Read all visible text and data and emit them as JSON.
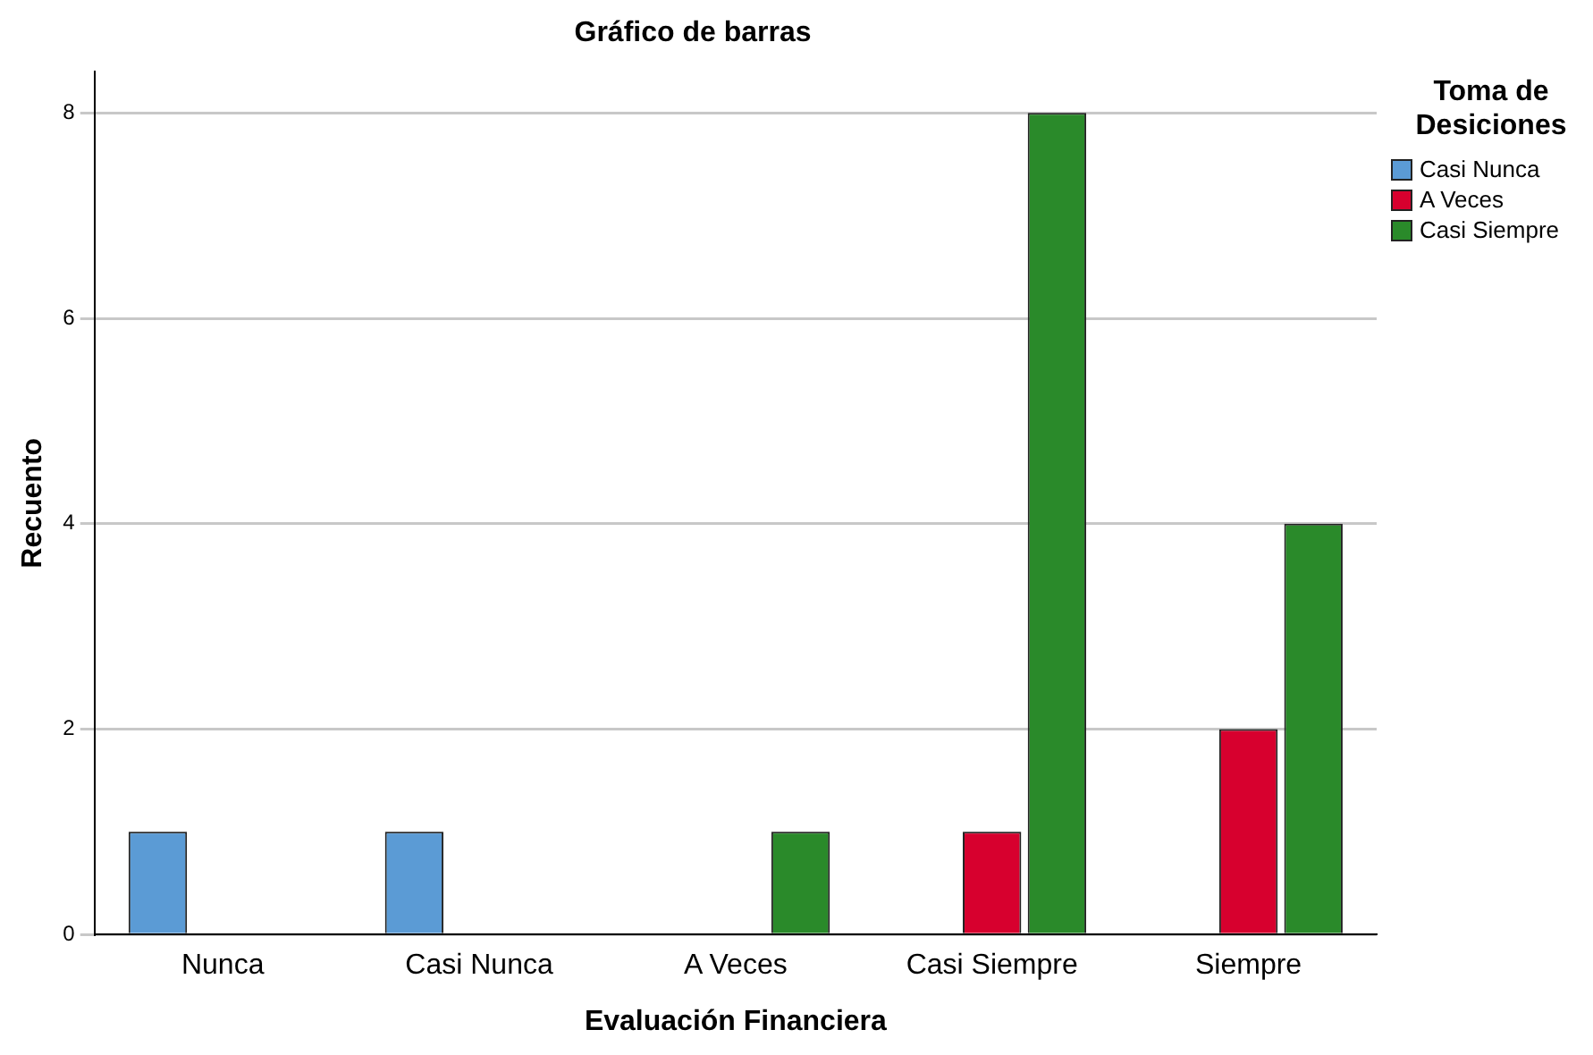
{
  "chart_data": {
    "type": "bar",
    "title": "Gráfico de barras",
    "xlabel": "Evaluación Financiera",
    "ylabel": "Recuento",
    "legend_title": "Toma de Desiciones",
    "categories": [
      "Nunca",
      "Casi Nunca",
      "A Veces",
      "Casi Siempre",
      "Siempre"
    ],
    "series": [
      {
        "name": "Casi Nunca",
        "color": "#5b9bd5",
        "values": [
          1,
          1,
          null,
          null,
          null
        ]
      },
      {
        "name": "A Veces",
        "color": "#d7002e",
        "values": [
          null,
          null,
          null,
          1,
          2
        ]
      },
      {
        "name": "Casi Siempre",
        "color": "#2a8a2a",
        "values": [
          null,
          null,
          1,
          8,
          4
        ]
      }
    ],
    "ylim": [
      0,
      8.4
    ],
    "yticks": [
      0,
      2,
      4,
      6,
      8
    ],
    "grid": "y",
    "legend": "top right"
  }
}
